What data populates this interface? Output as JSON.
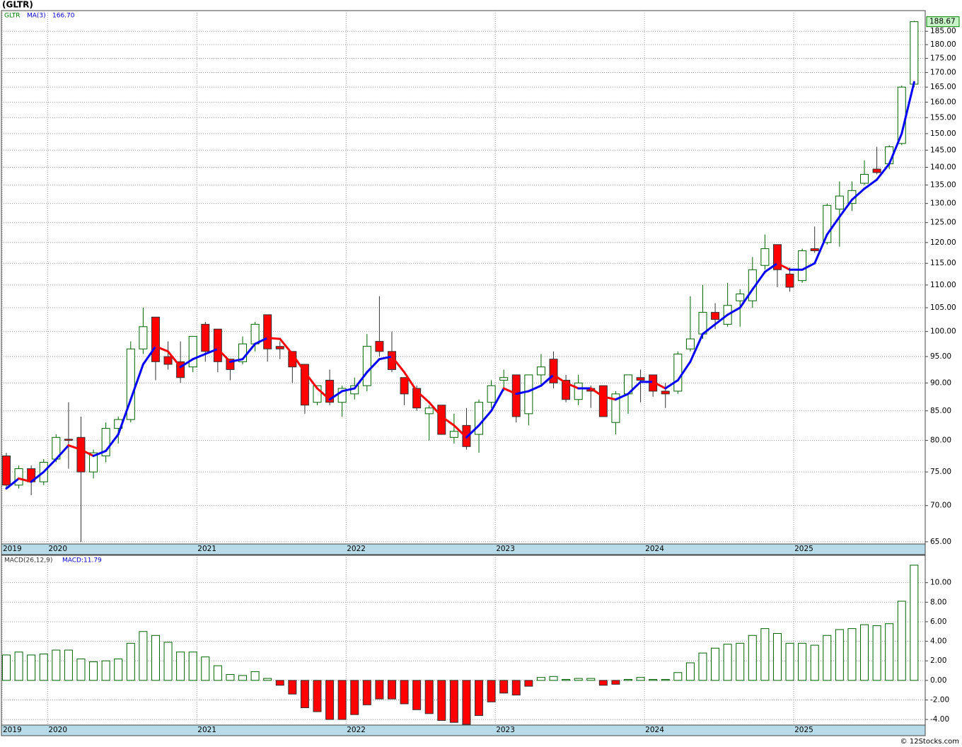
{
  "chart_data": [
    {
      "type": "candlestick",
      "title": "(GLTR)",
      "log_scale": true,
      "grid": true,
      "categories": [
        "2019",
        null,
        null,
        null,
        "2020",
        null,
        null,
        null,
        null,
        null,
        null,
        null,
        null,
        null,
        null,
        null,
        "2021",
        null,
        null,
        null,
        null,
        null,
        null,
        null,
        null,
        null,
        null,
        null,
        "2022",
        null,
        null,
        null,
        null,
        null,
        null,
        null,
        null,
        null,
        null,
        null,
        "2023",
        null,
        null,
        null,
        null,
        null,
        null,
        null,
        null,
        null,
        null,
        null,
        "2024",
        null,
        null,
        null,
        null,
        null,
        null,
        null,
        null,
        null,
        null,
        null,
        "2025",
        null,
        null,
        null,
        null,
        null,
        null,
        null,
        null,
        null
      ],
      "series": [
        {
          "name": "GLTR",
          "color": "#006400",
          "down_color": "#ff0000",
          "open": [
            77.5,
            73,
            75.5,
            73.5,
            77,
            80.2,
            80.5,
            75,
            77.5,
            82,
            83.5,
            96.5,
            103,
            95,
            94,
            93,
            101.5,
            100.5,
            94.5,
            94,
            97.5,
            103.5,
            97,
            96,
            93.5,
            86.5,
            90.5,
            86.5,
            88,
            89.5,
            98,
            96,
            91,
            89,
            84.5,
            86,
            80.5,
            82.5,
            81,
            86.5,
            90.5,
            91.5,
            84.5,
            91.5,
            94.5,
            90.5,
            87,
            89,
            89.5,
            83,
            88,
            91,
            91.5,
            88.5,
            88.5,
            96.5,
            99.5,
            104,
            101.5,
            106.5,
            106.5,
            114.5,
            119.5,
            112.5,
            111,
            118.5,
            120,
            128.5,
            130,
            135.5,
            139.5,
            141,
            147,
            166
          ],
          "high": [
            78,
            76,
            76,
            77,
            81,
            86.5,
            84,
            78.5,
            83,
            84,
            98,
            105,
            103,
            98,
            98,
            99,
            102,
            100.5,
            94.5,
            99,
            102,
            103.5,
            98,
            96,
            93.5,
            89.5,
            92.5,
            89.5,
            91,
            99.5,
            107.5,
            100,
            91,
            89.5,
            86,
            86,
            84.5,
            85.5,
            87,
            90.5,
            92.5,
            91.5,
            91.5,
            95.5,
            96,
            91.5,
            91.5,
            89.5,
            89.5,
            88.5,
            91.5,
            92.5,
            91.5,
            90,
            96,
            107.5,
            110,
            106,
            110.5,
            109,
            116.5,
            122,
            119.5,
            114,
            118.5,
            124,
            130,
            136,
            136,
            142,
            146,
            146.5,
            165.5,
            189
          ],
          "low": [
            72.5,
            72.5,
            71.5,
            73,
            76.5,
            75.5,
            65,
            74,
            76.5,
            79.5,
            83,
            95.5,
            90.5,
            92.5,
            90,
            92,
            94,
            92,
            90.5,
            93.5,
            96,
            94,
            94.5,
            90,
            84.5,
            86,
            86,
            84,
            87,
            88.5,
            95,
            92,
            86,
            85,
            80,
            81,
            79.5,
            78.5,
            78,
            85.5,
            88.5,
            83,
            82.5,
            89.5,
            89,
            86.5,
            86,
            85.5,
            84,
            81,
            84.5,
            86.5,
            87.5,
            85.5,
            88,
            96,
            98.5,
            100.5,
            101,
            101,
            105,
            113.5,
            109.5,
            108.5,
            110.5,
            117.5,
            119.5,
            119,
            128,
            135,
            138,
            139.5,
            146.5,
            165
          ],
          "close": [
            73,
            75.5,
            73.5,
            76.5,
            80.5,
            80,
            75,
            78,
            82,
            83.5,
            96.5,
            101,
            94,
            93.5,
            91,
            99,
            96,
            94,
            92.5,
            97.5,
            101.5,
            96.5,
            96.5,
            93,
            86,
            89.5,
            86.5,
            89,
            89.5,
            97,
            96,
            92.5,
            88,
            85.5,
            85.5,
            81,
            81.5,
            79,
            86.5,
            89.5,
            91,
            84,
            91.5,
            93,
            90,
            87,
            90,
            88.5,
            84,
            88,
            91.5,
            90.5,
            88.5,
            88,
            95.5,
            98.5,
            104,
            102.5,
            105.5,
            108,
            113.5,
            118.5,
            113.5,
            109.5,
            118,
            118,
            129.5,
            132,
            133.5,
            138,
            138.5,
            146,
            165,
            188.67
          ]
        },
        {
          "name": "MA(3)",
          "color": "#0000ff",
          "down_color": "#ff0000",
          "value_label": "166.70",
          "values": [
            72.5,
            74,
            73.5,
            75,
            77,
            79.2,
            78.5,
            77.5,
            78.3,
            81,
            87,
            93.5,
            97,
            96,
            93,
            94.5,
            95.5,
            96.5,
            94,
            94.5,
            97.5,
            98.7,
            98.5,
            95.5,
            92,
            89,
            87,
            88.5,
            89,
            92,
            94.5,
            95,
            92,
            88.5,
            86.5,
            84,
            82.5,
            80.5,
            82.5,
            85,
            89,
            88,
            88.5,
            89.5,
            91.5,
            90,
            89,
            89,
            87.5,
            87,
            88,
            90.2,
            90.2,
            89,
            90.5,
            94,
            99.5,
            101.5,
            103.5,
            105,
            109,
            113,
            115,
            113.5,
            113.5,
            115,
            122,
            126.5,
            131,
            134,
            136.5,
            141,
            150,
            166.7
          ]
        }
      ],
      "ylim": [
        64.8,
        193
      ],
      "yticks": [
        {
          "value": 65,
          "label": "65.00"
        },
        {
          "value": 70,
          "label": "70.00"
        },
        {
          "value": 75,
          "label": "75.00"
        },
        {
          "value": 80,
          "label": "80.00"
        },
        {
          "value": 85,
          "label": "85.00"
        },
        {
          "value": 90,
          "label": "90.00"
        },
        {
          "value": 95,
          "label": "95.00"
        },
        {
          "value": 100,
          "label": "100.00"
        },
        {
          "value": 105,
          "label": "105.00"
        },
        {
          "value": 110,
          "label": "110.00"
        },
        {
          "value": 115,
          "label": "115.00"
        },
        {
          "value": 120,
          "label": "120.00"
        },
        {
          "value": 125,
          "label": "125.00"
        },
        {
          "value": 130,
          "label": "130.00"
        },
        {
          "value": 135,
          "label": "135.00"
        },
        {
          "value": 140,
          "label": "140.00"
        },
        {
          "value": 145,
          "label": "145.00"
        },
        {
          "value": 150,
          "label": "150.00"
        },
        {
          "value": 155,
          "label": "155.00"
        },
        {
          "value": 160,
          "label": "160.00"
        },
        {
          "value": 165,
          "label": "165.00"
        },
        {
          "value": 170,
          "label": "170.00"
        },
        {
          "value": 175,
          "label": "175.00"
        },
        {
          "value": 180,
          "label": "180.00"
        },
        {
          "value": 185,
          "label": "185.00"
        }
      ]
    },
    {
      "type": "bar",
      "grid": true,
      "categories": [
        "2019",
        null,
        null,
        null,
        "2020",
        null,
        null,
        null,
        null,
        null,
        null,
        null,
        null,
        null,
        null,
        null,
        "2021",
        null,
        null,
        null,
        null,
        null,
        null,
        null,
        null,
        null,
        null,
        null,
        "2022",
        null,
        null,
        null,
        null,
        null,
        null,
        null,
        null,
        null,
        null,
        null,
        "2023",
        null,
        null,
        null,
        null,
        null,
        null,
        null,
        null,
        null,
        null,
        null,
        "2024",
        null,
        null,
        null,
        null,
        null,
        null,
        null,
        null,
        null,
        null,
        null,
        "2025",
        null,
        null,
        null,
        null,
        null,
        null,
        null,
        null,
        null
      ],
      "series": [
        {
          "name": "MACD(26,12,9)",
          "color": "#006400",
          "down_color": "#ff0000",
          "value_label": "MACD:11.79",
          "values": [
            2.6,
            2.9,
            2.6,
            2.7,
            3.1,
            3.1,
            2.2,
            1.9,
            2.0,
            2.2,
            3.8,
            5.0,
            4.6,
            3.9,
            2.9,
            2.9,
            2.4,
            1.5,
            0.6,
            0.5,
            0.9,
            0.2,
            -0.5,
            -1.4,
            -2.8,
            -3.2,
            -4.0,
            -4.0,
            -3.5,
            -2.5,
            -1.9,
            -1.9,
            -2.4,
            -3.0,
            -3.4,
            -4.1,
            -4.3,
            -4.5,
            -3.6,
            -2.2,
            -1.3,
            -1.5,
            -0.6,
            0.3,
            0.4,
            0.1,
            0.2,
            0.2,
            -0.5,
            -0.4,
            0.1,
            0.3,
            0.1,
            0.1,
            0.8,
            1.8,
            2.8,
            3.3,
            3.7,
            3.8,
            4.6,
            5.3,
            4.8,
            3.8,
            3.8,
            3.6,
            4.6,
            5.2,
            5.3,
            5.7,
            5.6,
            5.8,
            8.1,
            11.79
          ]
        }
      ],
      "ylim": [
        -4.5,
        12.8
      ],
      "yticks": [
        {
          "value": -4,
          "label": "-4.00"
        },
        {
          "value": -2,
          "label": "-2.00"
        },
        {
          "value": 0,
          "label": "0.00"
        },
        {
          "value": 2,
          "label": "2.00"
        },
        {
          "value": 4,
          "label": "4.00"
        },
        {
          "value": 6,
          "label": "6.00"
        },
        {
          "value": 8,
          "label": "8.00"
        },
        {
          "value": 10,
          "label": "10.00"
        }
      ]
    }
  ],
  "footer": "© 12Stocks.com"
}
